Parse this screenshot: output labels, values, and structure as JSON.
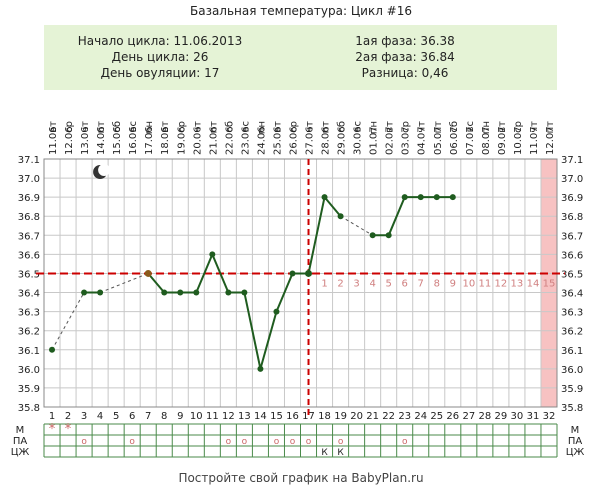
{
  "page": {
    "title": "Базальная температура: Цикл #16",
    "footer": "Постройте свой график на BabyPlan.ru"
  },
  "info": {
    "cycle_start": "Начало цикла: 11.06.2013",
    "cycle_day": "День цикла: 26",
    "ovulation_day": "День овуляции: 17",
    "phase1": "1ая фаза: 36.38",
    "phase2": "2ая фаза: 36.84",
    "difference": "Разница: 0,46"
  },
  "chart_data": {
    "type": "line",
    "weekdays": [
      "вт",
      "ср",
      "чт",
      "пт",
      "сб",
      "вс",
      "пн",
      "вт",
      "ср",
      "чт",
      "пт",
      "сб",
      "вс",
      "пн",
      "вт",
      "ср",
      "чт",
      "пт",
      "сб",
      "вс",
      "пн",
      "вт",
      "ср",
      "чт",
      "пт",
      "сб",
      "вс",
      "пн",
      "вт",
      "ср",
      "чт",
      "пт"
    ],
    "dates": [
      "11.06",
      "12.06",
      "13.06",
      "14.06",
      "15.06",
      "16.06",
      "17.06",
      "18.06",
      "19.06",
      "20.06",
      "21.06",
      "22.06",
      "23.06",
      "24.06",
      "25.06",
      "26.06",
      "27.06",
      "28.06",
      "29.06",
      "30.06",
      "01.07",
      "02.07",
      "03.07",
      "04.07",
      "05.07",
      "06.07",
      "07.07",
      "08.07",
      "09.07",
      "10.07",
      "11.07",
      "12.07"
    ],
    "days": [
      1,
      2,
      3,
      4,
      5,
      6,
      7,
      8,
      9,
      10,
      11,
      12,
      13,
      14,
      15,
      16,
      17,
      18,
      19,
      20,
      21,
      22,
      23,
      24,
      25,
      26,
      27,
      28,
      29,
      30,
      31,
      32
    ],
    "temperatures": [
      36.1,
      null,
      36.4,
      36.4,
      null,
      null,
      36.5,
      36.4,
      36.4,
      36.4,
      36.6,
      36.4,
      36.4,
      36.0,
      36.3,
      36.5,
      36.5,
      36.9,
      36.8,
      null,
      36.7,
      36.7,
      36.9,
      36.9,
      36.9,
      36.9,
      null,
      null,
      null,
      null,
      null,
      null
    ],
    "y_ticks": [
      "37.1",
      "37.0",
      "36.9",
      "36.8",
      "36.7",
      "36.6",
      "36.5",
      "36.4",
      "36.3",
      "36.2",
      "36.1",
      "36.0",
      "35.9",
      "35.8"
    ],
    "ylim": [
      35.8,
      37.1
    ],
    "coverline": 36.5,
    "ovulation_day": 17,
    "luteal_numbers": [
      "1",
      "2",
      "3",
      "4",
      "5",
      "6",
      "7",
      "8",
      "9",
      "10",
      "11",
      "12",
      "13",
      "14",
      "15"
    ],
    "highlight_day": 32,
    "moon_day": 4,
    "row_labels": [
      "М",
      "ПА",
      "ЦЖ"
    ],
    "m_marks": [
      "*",
      "*",
      "",
      "",
      "",
      "",
      "",
      "",
      "",
      "",
      "",
      "",
      "",
      "",
      "",
      "",
      "",
      "",
      "",
      "",
      "",
      "",
      "",
      "",
      "",
      "",
      "",
      "",
      "",
      "",
      "",
      ""
    ],
    "pa_marks": [
      "",
      "",
      "o",
      "",
      "",
      "o",
      "",
      "",
      "",
      "",
      "",
      "o",
      "o",
      "",
      "o",
      "o",
      "o",
      "",
      "o",
      "",
      "",
      "",
      "o",
      "",
      "",
      "",
      "",
      "",
      "",
      "",
      "",
      ""
    ],
    "cj_marks": [
      "",
      "",
      "",
      "",
      "",
      "",
      "",
      "",
      "",
      "",
      "",
      "",
      "",
      "",
      "",
      "",
      "",
      "К",
      "К",
      "",
      "",
      "",
      "",
      "",
      "",
      "",
      "",
      "",
      "",
      "",
      "",
      ""
    ],
    "colors": {
      "line": "#1f5c1f",
      "coverline": "#cc0000",
      "highlight": "#f7c2c2",
      "grid": "#c8c8c8",
      "info_bg": "#e5f3d6",
      "marks": "#cc6666"
    }
  }
}
